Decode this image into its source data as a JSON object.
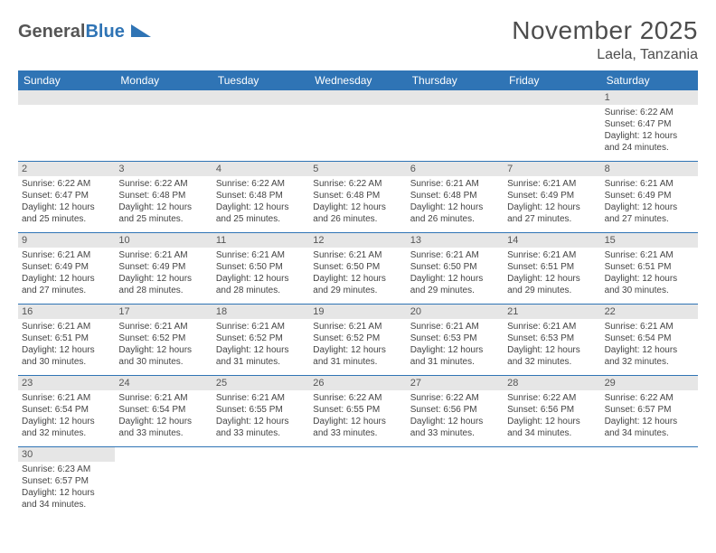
{
  "colors": {
    "header_bg": "#2f74b5",
    "header_text": "#ffffff",
    "daynum_bg": "#e6e6e6",
    "text": "#444",
    "border": "#2f74b5"
  },
  "logo": {
    "text1": "General",
    "text2": "Blue"
  },
  "title": "November 2025",
  "location": "Laela, Tanzania",
  "daynames": [
    "Sunday",
    "Monday",
    "Tuesday",
    "Wednesday",
    "Thursday",
    "Friday",
    "Saturday"
  ],
  "weeks": [
    [
      null,
      null,
      null,
      null,
      null,
      null,
      {
        "n": "1",
        "sr": "Sunrise: 6:22 AM",
        "ss": "Sunset: 6:47 PM",
        "d1": "Daylight: 12 hours",
        "d2": "and 24 minutes."
      }
    ],
    [
      {
        "n": "2",
        "sr": "Sunrise: 6:22 AM",
        "ss": "Sunset: 6:47 PM",
        "d1": "Daylight: 12 hours",
        "d2": "and 25 minutes."
      },
      {
        "n": "3",
        "sr": "Sunrise: 6:22 AM",
        "ss": "Sunset: 6:48 PM",
        "d1": "Daylight: 12 hours",
        "d2": "and 25 minutes."
      },
      {
        "n": "4",
        "sr": "Sunrise: 6:22 AM",
        "ss": "Sunset: 6:48 PM",
        "d1": "Daylight: 12 hours",
        "d2": "and 25 minutes."
      },
      {
        "n": "5",
        "sr": "Sunrise: 6:22 AM",
        "ss": "Sunset: 6:48 PM",
        "d1": "Daylight: 12 hours",
        "d2": "and 26 minutes."
      },
      {
        "n": "6",
        "sr": "Sunrise: 6:21 AM",
        "ss": "Sunset: 6:48 PM",
        "d1": "Daylight: 12 hours",
        "d2": "and 26 minutes."
      },
      {
        "n": "7",
        "sr": "Sunrise: 6:21 AM",
        "ss": "Sunset: 6:49 PM",
        "d1": "Daylight: 12 hours",
        "d2": "and 27 minutes."
      },
      {
        "n": "8",
        "sr": "Sunrise: 6:21 AM",
        "ss": "Sunset: 6:49 PM",
        "d1": "Daylight: 12 hours",
        "d2": "and 27 minutes."
      }
    ],
    [
      {
        "n": "9",
        "sr": "Sunrise: 6:21 AM",
        "ss": "Sunset: 6:49 PM",
        "d1": "Daylight: 12 hours",
        "d2": "and 27 minutes."
      },
      {
        "n": "10",
        "sr": "Sunrise: 6:21 AM",
        "ss": "Sunset: 6:49 PM",
        "d1": "Daylight: 12 hours",
        "d2": "and 28 minutes."
      },
      {
        "n": "11",
        "sr": "Sunrise: 6:21 AM",
        "ss": "Sunset: 6:50 PM",
        "d1": "Daylight: 12 hours",
        "d2": "and 28 minutes."
      },
      {
        "n": "12",
        "sr": "Sunrise: 6:21 AM",
        "ss": "Sunset: 6:50 PM",
        "d1": "Daylight: 12 hours",
        "d2": "and 29 minutes."
      },
      {
        "n": "13",
        "sr": "Sunrise: 6:21 AM",
        "ss": "Sunset: 6:50 PM",
        "d1": "Daylight: 12 hours",
        "d2": "and 29 minutes."
      },
      {
        "n": "14",
        "sr": "Sunrise: 6:21 AM",
        "ss": "Sunset: 6:51 PM",
        "d1": "Daylight: 12 hours",
        "d2": "and 29 minutes."
      },
      {
        "n": "15",
        "sr": "Sunrise: 6:21 AM",
        "ss": "Sunset: 6:51 PM",
        "d1": "Daylight: 12 hours",
        "d2": "and 30 minutes."
      }
    ],
    [
      {
        "n": "16",
        "sr": "Sunrise: 6:21 AM",
        "ss": "Sunset: 6:51 PM",
        "d1": "Daylight: 12 hours",
        "d2": "and 30 minutes."
      },
      {
        "n": "17",
        "sr": "Sunrise: 6:21 AM",
        "ss": "Sunset: 6:52 PM",
        "d1": "Daylight: 12 hours",
        "d2": "and 30 minutes."
      },
      {
        "n": "18",
        "sr": "Sunrise: 6:21 AM",
        "ss": "Sunset: 6:52 PM",
        "d1": "Daylight: 12 hours",
        "d2": "and 31 minutes."
      },
      {
        "n": "19",
        "sr": "Sunrise: 6:21 AM",
        "ss": "Sunset: 6:52 PM",
        "d1": "Daylight: 12 hours",
        "d2": "and 31 minutes."
      },
      {
        "n": "20",
        "sr": "Sunrise: 6:21 AM",
        "ss": "Sunset: 6:53 PM",
        "d1": "Daylight: 12 hours",
        "d2": "and 31 minutes."
      },
      {
        "n": "21",
        "sr": "Sunrise: 6:21 AM",
        "ss": "Sunset: 6:53 PM",
        "d1": "Daylight: 12 hours",
        "d2": "and 32 minutes."
      },
      {
        "n": "22",
        "sr": "Sunrise: 6:21 AM",
        "ss": "Sunset: 6:54 PM",
        "d1": "Daylight: 12 hours",
        "d2": "and 32 minutes."
      }
    ],
    [
      {
        "n": "23",
        "sr": "Sunrise: 6:21 AM",
        "ss": "Sunset: 6:54 PM",
        "d1": "Daylight: 12 hours",
        "d2": "and 32 minutes."
      },
      {
        "n": "24",
        "sr": "Sunrise: 6:21 AM",
        "ss": "Sunset: 6:54 PM",
        "d1": "Daylight: 12 hours",
        "d2": "and 33 minutes."
      },
      {
        "n": "25",
        "sr": "Sunrise: 6:21 AM",
        "ss": "Sunset: 6:55 PM",
        "d1": "Daylight: 12 hours",
        "d2": "and 33 minutes."
      },
      {
        "n": "26",
        "sr": "Sunrise: 6:22 AM",
        "ss": "Sunset: 6:55 PM",
        "d1": "Daylight: 12 hours",
        "d2": "and 33 minutes."
      },
      {
        "n": "27",
        "sr": "Sunrise: 6:22 AM",
        "ss": "Sunset: 6:56 PM",
        "d1": "Daylight: 12 hours",
        "d2": "and 33 minutes."
      },
      {
        "n": "28",
        "sr": "Sunrise: 6:22 AM",
        "ss": "Sunset: 6:56 PM",
        "d1": "Daylight: 12 hours",
        "d2": "and 34 minutes."
      },
      {
        "n": "29",
        "sr": "Sunrise: 6:22 AM",
        "ss": "Sunset: 6:57 PM",
        "d1": "Daylight: 12 hours",
        "d2": "and 34 minutes."
      }
    ],
    [
      {
        "n": "30",
        "sr": "Sunrise: 6:23 AM",
        "ss": "Sunset: 6:57 PM",
        "d1": "Daylight: 12 hours",
        "d2": "and 34 minutes."
      },
      null,
      null,
      null,
      null,
      null,
      null
    ]
  ]
}
